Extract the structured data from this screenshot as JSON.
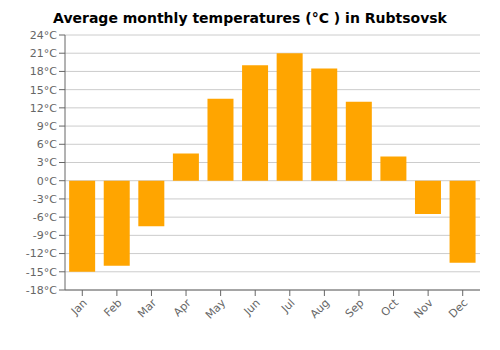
{
  "chart_data": {
    "type": "bar",
    "title": "Average monthly temperatures (°C ) in Rubtsovsk",
    "categories": [
      "Jan",
      "Feb",
      "Mar",
      "Apr",
      "May",
      "Jun",
      "Jul",
      "Aug",
      "Sep",
      "Oct",
      "Nov",
      "Dec"
    ],
    "values": [
      -15,
      -14,
      -7.5,
      4.5,
      13.5,
      19,
      21,
      18.5,
      13,
      4,
      -5.5,
      -13.5
    ],
    "color": "#FFA500",
    "ylim": [
      -18,
      24
    ],
    "yticks": [
      {
        "value": -18,
        "label": "-18°C"
      },
      {
        "value": -15,
        "label": "-15°C"
      },
      {
        "value": -12,
        "label": "-12°C"
      },
      {
        "value": -9,
        "label": "-9°C"
      },
      {
        "value": -6,
        "label": "-6°C"
      },
      {
        "value": -3,
        "label": "-3°C"
      },
      {
        "value": 0,
        "label": "0°C"
      },
      {
        "value": 3,
        "label": "3°C"
      },
      {
        "value": 6,
        "label": "6°C"
      },
      {
        "value": 9,
        "label": "9°C"
      },
      {
        "value": 12,
        "label": "12°C"
      },
      {
        "value": 15,
        "label": "15°C"
      },
      {
        "value": 18,
        "label": "18°C"
      },
      {
        "value": 21,
        "label": "21°C"
      },
      {
        "value": 24,
        "label": "24°C"
      }
    ],
    "grid": true
  }
}
